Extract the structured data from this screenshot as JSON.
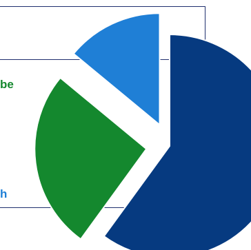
{
  "chart_data": {
    "type": "pie",
    "title": "",
    "labels_visible": [
      {
        "slice_index": 1,
        "text": "be",
        "color": "#14882e"
      },
      {
        "slice_index": 2,
        "text": "h",
        "color": "#1f7fd6"
      }
    ],
    "slices": [
      {
        "name": "",
        "value": 60,
        "color": "#063a80"
      },
      {
        "name": "",
        "value": 26,
        "color": "#14882e"
      },
      {
        "name": "",
        "value": 14,
        "color": "#1f7fd6"
      }
    ],
    "exploded": [
      false,
      true,
      true
    ],
    "legend": "none"
  }
}
